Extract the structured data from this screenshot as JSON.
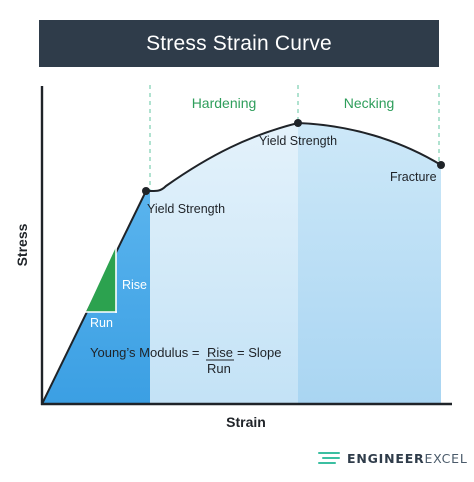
{
  "title": "Stress Strain Curve",
  "axes": {
    "x_label": "Strain",
    "y_label": "Stress"
  },
  "regions": {
    "hardening": "Hardening",
    "necking": "Necking"
  },
  "points": {
    "yield_strength_lower": "Yield Strength",
    "yield_strength_upper": "Yield Strength",
    "fracture": "Fracture"
  },
  "triangle": {
    "rise": "Rise",
    "run": "Run"
  },
  "formula": {
    "prefix": "Young’s Modulus =",
    "numerator": "Rise",
    "denominator": "Run",
    "suffix": "= Slope"
  },
  "logo": {
    "brand_part1": "ENGINEER",
    "brand_part2": "EXCEL"
  },
  "colors": {
    "title_bg": "#2f3c4a",
    "elastic_fill": "#4aa9e8",
    "plastic_fill": "#c3e2f6",
    "necking_fill": "#aed7f3",
    "green_label": "#2e9e5b",
    "triangle_green": "#2ca24f",
    "divider": "#7ccfb0"
  }
}
